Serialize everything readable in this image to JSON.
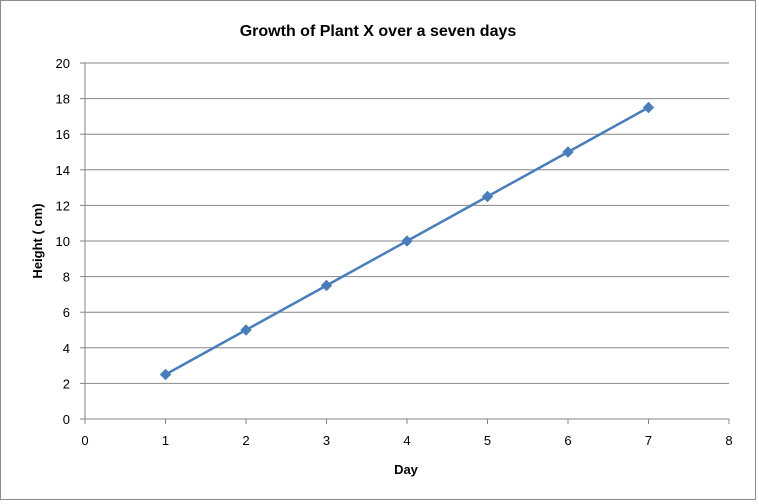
{
  "chart_data": {
    "type": "line",
    "title": "Growth of Plant X over a seven days",
    "xlabel": "Day",
    "ylabel": "Height  ( cm)",
    "x": [
      1,
      2,
      3,
      4,
      5,
      6,
      7
    ],
    "series": [
      {
        "values": [
          2.5,
          5,
          7.5,
          10,
          12.5,
          15,
          17.5
        ],
        "color": "#4a7ebb"
      }
    ],
    "xlim": [
      0,
      8
    ],
    "ylim": [
      0,
      20
    ],
    "xticks": [
      "0",
      "1",
      "2",
      "3",
      "4",
      "5",
      "6",
      "7",
      "8"
    ],
    "yticks": [
      "0",
      "2",
      "4",
      "6",
      "8",
      "10",
      "12",
      "14",
      "16",
      "18",
      "20"
    ],
    "grid": "horizontal",
    "legend": "none",
    "marker": "diamond"
  }
}
